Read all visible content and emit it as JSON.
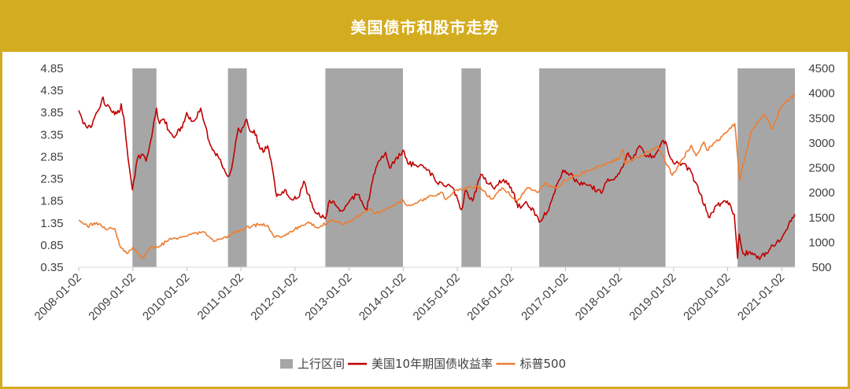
{
  "header": {
    "title": "美国债市和股市走势"
  },
  "colors": {
    "banner": "#d4ac1f",
    "shade": "#a6a6a6",
    "yield": "#c00000",
    "sp500": "#ed7d31"
  },
  "chart_data": {
    "type": "line",
    "x_axis": {
      "type": "date",
      "range": [
        "2008-01-02",
        "2021-03-31"
      ],
      "tick_labels": [
        "2008-01-02",
        "2009-01-02",
        "2010-01-02",
        "2011-01-02",
        "2012-01-02",
        "2013-01-02",
        "2014-01-02",
        "2015-01-02",
        "2016-01-02",
        "2017-01-02",
        "2018-01-02",
        "2019-01-02",
        "2020-01-02",
        "2021-01-02"
      ]
    },
    "y_left": {
      "ylim": [
        0.35,
        4.85
      ],
      "tick_labels": [
        "4.85",
        "4.35",
        "3.85",
        "3.35",
        "2.85",
        "2.35",
        "1.85",
        "1.35",
        "0.85",
        "0.35"
      ]
    },
    "y_right": {
      "ylim": [
        500,
        4500
      ],
      "tick_labels": [
        "4500",
        "4000",
        "3500",
        "3000",
        "2500",
        "2000",
        "1500",
        "1000",
        "500"
      ]
    },
    "shaded_periods": {
      "name": "上行区间",
      "ranges": [
        [
          "2008-12-30",
          "2009-06-10"
        ],
        [
          "2010-10-06",
          "2011-02-10"
        ],
        [
          "2012-07-25",
          "2013-12-31"
        ],
        [
          "2015-01-30",
          "2015-06-10"
        ],
        [
          "2016-07-08",
          "2018-11-08"
        ],
        [
          "2020-03-09",
          "2021-03-31"
        ]
      ]
    },
    "series": [
      {
        "name": "美国10年期国债收益率",
        "axis": "left",
        "points": [
          [
            "2008-01-02",
            3.9
          ],
          [
            "2008-02-01",
            3.6
          ],
          [
            "2008-03-01",
            3.5
          ],
          [
            "2008-04-01",
            3.55
          ],
          [
            "2008-05-01",
            3.85
          ],
          [
            "2008-06-01",
            4.05
          ],
          [
            "2008-06-15",
            4.2
          ],
          [
            "2008-07-01",
            4.0
          ],
          [
            "2008-08-01",
            3.95
          ],
          [
            "2008-09-01",
            3.8
          ],
          [
            "2008-10-01",
            3.85
          ],
          [
            "2008-10-15",
            4.05
          ],
          [
            "2008-11-01",
            3.75
          ],
          [
            "2008-12-01",
            2.8
          ],
          [
            "2008-12-30",
            2.1
          ],
          [
            "2009-02-01",
            2.8
          ],
          [
            "2009-03-01",
            2.9
          ],
          [
            "2009-04-01",
            2.75
          ],
          [
            "2009-05-01",
            3.2
          ],
          [
            "2009-06-10",
            3.95
          ],
          [
            "2009-07-01",
            3.6
          ],
          [
            "2009-08-01",
            3.7
          ],
          [
            "2009-09-01",
            3.45
          ],
          [
            "2009-10-01",
            3.3
          ],
          [
            "2009-11-01",
            3.45
          ],
          [
            "2009-12-01",
            3.5
          ],
          [
            "2010-01-01",
            3.85
          ],
          [
            "2010-02-01",
            3.65
          ],
          [
            "2010-03-01",
            3.7
          ],
          [
            "2010-04-05",
            3.95
          ],
          [
            "2010-05-01",
            3.6
          ],
          [
            "2010-06-01",
            3.2
          ],
          [
            "2010-07-01",
            3.0
          ],
          [
            "2010-08-01",
            2.85
          ],
          [
            "2010-09-01",
            2.6
          ],
          [
            "2010-10-06",
            2.4
          ],
          [
            "2010-11-01",
            2.6
          ],
          [
            "2010-12-15",
            3.5
          ],
          [
            "2011-01-01",
            3.4
          ],
          [
            "2011-02-10",
            3.7
          ],
          [
            "2011-03-01",
            3.45
          ],
          [
            "2011-04-01",
            3.45
          ],
          [
            "2011-05-01",
            3.15
          ],
          [
            "2011-06-01",
            2.95
          ],
          [
            "2011-07-01",
            3.1
          ],
          [
            "2011-08-01",
            2.6
          ],
          [
            "2011-09-01",
            1.95
          ],
          [
            "2011-10-01",
            2.0
          ],
          [
            "2011-11-01",
            2.1
          ],
          [
            "2011-12-01",
            1.9
          ],
          [
            "2012-01-01",
            1.95
          ],
          [
            "2012-02-01",
            1.95
          ],
          [
            "2012-03-01",
            2.3
          ],
          [
            "2012-04-01",
            2.0
          ],
          [
            "2012-05-01",
            1.7
          ],
          [
            "2012-06-01",
            1.55
          ],
          [
            "2012-07-25",
            1.45
          ],
          [
            "2012-08-15",
            1.8
          ],
          [
            "2012-09-15",
            1.85
          ],
          [
            "2012-10-15",
            1.7
          ],
          [
            "2012-11-15",
            1.62
          ],
          [
            "2012-12-15",
            1.75
          ],
          [
            "2013-01-15",
            1.9
          ],
          [
            "2013-03-01",
            2.0
          ],
          [
            "2013-05-01",
            1.65
          ],
          [
            "2013-06-01",
            2.2
          ],
          [
            "2013-07-01",
            2.6
          ],
          [
            "2013-09-05",
            2.95
          ],
          [
            "2013-10-01",
            2.6
          ],
          [
            "2013-11-01",
            2.7
          ],
          [
            "2013-12-31",
            3.0
          ],
          [
            "2014-02-01",
            2.7
          ],
          [
            "2014-04-01",
            2.65
          ],
          [
            "2014-06-01",
            2.6
          ],
          [
            "2014-08-01",
            2.35
          ],
          [
            "2014-10-01",
            2.2
          ],
          [
            "2014-12-01",
            2.15
          ],
          [
            "2015-01-30",
            1.65
          ],
          [
            "2015-03-01",
            2.1
          ],
          [
            "2015-04-15",
            1.85
          ],
          [
            "2015-06-10",
            2.45
          ],
          [
            "2015-07-01",
            2.35
          ],
          [
            "2015-09-01",
            2.15
          ],
          [
            "2015-11-01",
            2.3
          ],
          [
            "2015-12-15",
            2.25
          ],
          [
            "2016-01-15",
            2.05
          ],
          [
            "2016-02-15",
            1.7
          ],
          [
            "2016-04-01",
            1.8
          ],
          [
            "2016-06-01",
            1.65
          ],
          [
            "2016-07-08",
            1.37
          ],
          [
            "2016-09-01",
            1.6
          ],
          [
            "2016-11-15",
            2.3
          ],
          [
            "2016-12-15",
            2.55
          ],
          [
            "2017-02-01",
            2.45
          ],
          [
            "2017-04-01",
            2.25
          ],
          [
            "2017-06-01",
            2.2
          ],
          [
            "2017-09-08",
            2.05
          ],
          [
            "2017-10-15",
            2.35
          ],
          [
            "2017-12-15",
            2.4
          ],
          [
            "2018-01-15",
            2.6
          ],
          [
            "2018-02-20",
            2.9
          ],
          [
            "2018-04-01",
            2.8
          ],
          [
            "2018-05-17",
            3.1
          ],
          [
            "2018-07-01",
            2.85
          ],
          [
            "2018-09-01",
            2.9
          ],
          [
            "2018-10-15",
            3.2
          ],
          [
            "2018-11-08",
            3.2
          ],
          [
            "2018-12-15",
            2.8
          ],
          [
            "2019-01-15",
            2.7
          ],
          [
            "2019-03-01",
            2.7
          ],
          [
            "2019-05-01",
            2.5
          ],
          [
            "2019-07-01",
            2.0
          ],
          [
            "2019-09-03",
            1.47
          ],
          [
            "2019-10-15",
            1.75
          ],
          [
            "2019-12-15",
            1.85
          ],
          [
            "2020-01-15",
            1.8
          ],
          [
            "2020-02-15",
            1.55
          ],
          [
            "2020-03-09",
            0.55
          ],
          [
            "2020-03-20",
            1.1
          ],
          [
            "2020-04-15",
            0.65
          ],
          [
            "2020-06-01",
            0.7
          ],
          [
            "2020-07-01",
            0.65
          ],
          [
            "2020-08-04",
            0.52
          ],
          [
            "2020-09-15",
            0.68
          ],
          [
            "2020-11-01",
            0.85
          ],
          [
            "2020-12-15",
            0.92
          ],
          [
            "2021-01-15",
            1.1
          ],
          [
            "2021-02-15",
            1.3
          ],
          [
            "2021-03-31",
            1.55
          ]
        ]
      },
      {
        "name": "标普500",
        "axis": "right",
        "points": [
          [
            "2008-01-02",
            1450
          ],
          [
            "2008-03-01",
            1320
          ],
          [
            "2008-05-01",
            1400
          ],
          [
            "2008-07-01",
            1260
          ],
          [
            "2008-09-01",
            1280
          ],
          [
            "2008-10-10",
            900
          ],
          [
            "2008-11-20",
            780
          ],
          [
            "2009-01-01",
            900
          ],
          [
            "2009-03-09",
            680
          ],
          [
            "2009-05-01",
            900
          ],
          [
            "2009-07-01",
            920
          ],
          [
            "2009-09-01",
            1050
          ],
          [
            "2009-12-01",
            1110
          ],
          [
            "2010-04-20",
            1210
          ],
          [
            "2010-07-01",
            1020
          ],
          [
            "2010-09-01",
            1080
          ],
          [
            "2010-12-31",
            1250
          ],
          [
            "2011-04-29",
            1360
          ],
          [
            "2011-07-01",
            1340
          ],
          [
            "2011-08-10",
            1120
          ],
          [
            "2011-10-03",
            1100
          ],
          [
            "2011-12-31",
            1260
          ],
          [
            "2012-04-01",
            1410
          ],
          [
            "2012-06-01",
            1290
          ],
          [
            "2012-09-14",
            1460
          ],
          [
            "2012-11-15",
            1360
          ],
          [
            "2012-12-31",
            1420
          ],
          [
            "2013-05-21",
            1670
          ],
          [
            "2013-06-24",
            1570
          ],
          [
            "2013-12-31",
            1850
          ],
          [
            "2014-02-03",
            1740
          ],
          [
            "2014-09-18",
            2010
          ],
          [
            "2014-10-15",
            1860
          ],
          [
            "2014-12-31",
            2060
          ],
          [
            "2015-05-20",
            2130
          ],
          [
            "2015-08-24",
            1870
          ],
          [
            "2015-11-01",
            2100
          ],
          [
            "2016-02-11",
            1830
          ],
          [
            "2016-04-20",
            2100
          ],
          [
            "2016-06-27",
            2000
          ],
          [
            "2016-08-15",
            2190
          ],
          [
            "2016-11-04",
            2080
          ],
          [
            "2016-12-31",
            2250
          ],
          [
            "2017-06-01",
            2430
          ],
          [
            "2017-12-31",
            2680
          ],
          [
            "2018-01-26",
            2870
          ],
          [
            "2018-02-08",
            2580
          ],
          [
            "2018-09-20",
            2930
          ],
          [
            "2018-12-24",
            2350
          ],
          [
            "2019-04-30",
            2950
          ],
          [
            "2019-06-03",
            2740
          ],
          [
            "2019-07-26",
            3020
          ],
          [
            "2019-08-15",
            2850
          ],
          [
            "2019-12-31",
            3230
          ],
          [
            "2020-02-19",
            3390
          ],
          [
            "2020-03-23",
            2240
          ],
          [
            "2020-06-08",
            3230
          ],
          [
            "2020-09-02",
            3580
          ],
          [
            "2020-10-30",
            3270
          ],
          [
            "2020-12-31",
            3750
          ],
          [
            "2021-03-31",
            3970
          ]
        ]
      }
    ],
    "legend": {
      "placement": "bottom",
      "items": [
        {
          "label": "上行区间",
          "type": "rect",
          "color": "#a6a6a6"
        },
        {
          "label": "美国10年期国债收益率",
          "type": "line",
          "color": "#c00000"
        },
        {
          "label": "标普500",
          "type": "line",
          "color": "#ed7d31"
        }
      ]
    }
  }
}
